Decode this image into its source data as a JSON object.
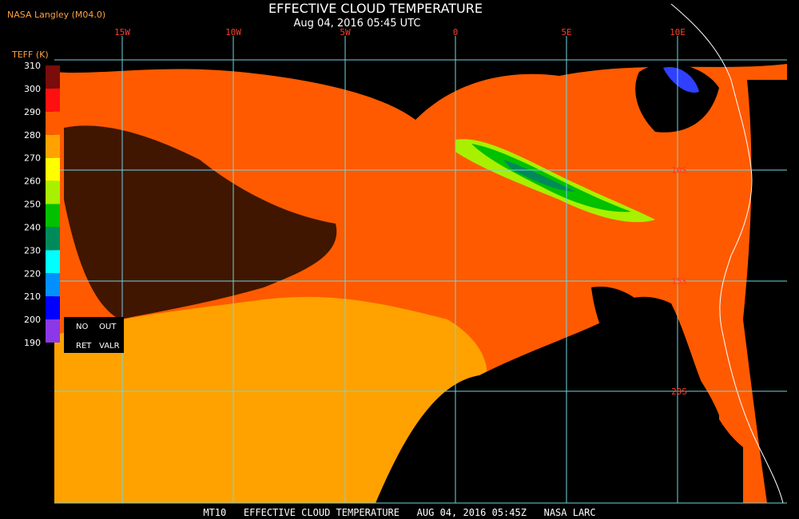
{
  "header": {
    "credit": "NASA Langley (M04.0)",
    "title": "EFFECTIVE CLOUD TEMPERATURE",
    "subtitle": "Aug 04, 2016 05:45 UTC"
  },
  "longitude_labels": [
    "15W",
    "10W",
    "5W",
    "0",
    "5E",
    "10E"
  ],
  "latitude_labels": [
    "10S",
    "15S",
    "20S"
  ],
  "legend": {
    "title": "TEFF (K)",
    "ticks": [
      310,
      300,
      290,
      280,
      270,
      260,
      250,
      240,
      230,
      220,
      210,
      200,
      190
    ],
    "colors": [
      "#7a0c0c",
      "#ff1010",
      "#ff5a00",
      "#ffa200",
      "#ffff00",
      "#a8f000",
      "#00c000",
      "#008a5a",
      "#00ffff",
      "#0090ff",
      "#0000ff",
      "#8c38e8"
    ],
    "no": "NO",
    "out": "OUT",
    "ret": "RET",
    "valr": "VALR"
  },
  "footer": "MT10   EFFECTIVE CLOUD TEMPERATURE   AUG 04, 2016 05:45Z   NASA LARC"
}
